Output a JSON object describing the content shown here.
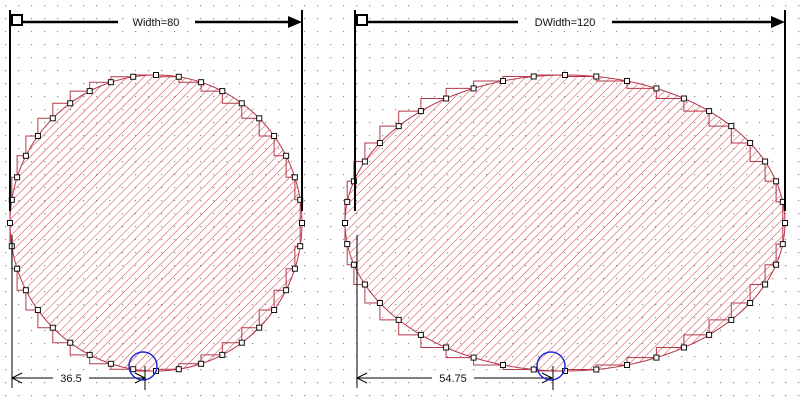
{
  "colors": {
    "background": "#ffffff",
    "grid_dot": "#8c8c8c",
    "hatch": "#d23a4a",
    "outline": "#b63847",
    "dimension": "#000000",
    "vertex_fill": "#ffffff",
    "vertex_stroke": "#111111",
    "highlight_circle": "#1f2bd6"
  },
  "panels": [
    {
      "id": "left",
      "top_dimension_label": "Width=80",
      "bottom_dimension_label": "36.5"
    },
    {
      "id": "right",
      "top_dimension_label": "DWidth=120",
      "bottom_dimension_label": "54.75"
    }
  ]
}
